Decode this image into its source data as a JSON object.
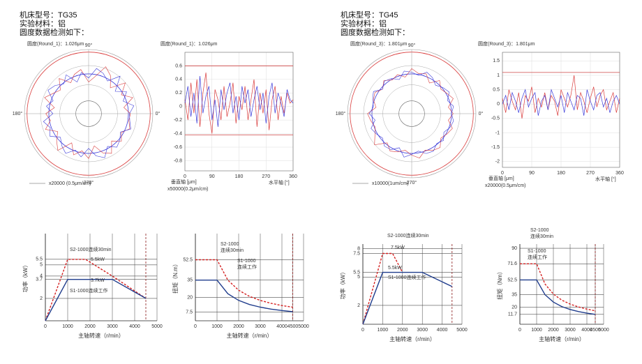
{
  "headers": [
    [
      "机床型号：TG35",
      "实验材料：铝",
      "圆度数据检测如下："
    ],
    [
      "机床型号：TG45",
      "实验材料：铝",
      "圆度数据检测如下："
    ]
  ],
  "chart_data": [
    {
      "type": "polar",
      "title": "圆度(Round_1)：1.026μm",
      "angle_labels": [
        "90°",
        "0°",
        "180°",
        "270°"
      ],
      "scale_label": "x20000 (0.5μm/cm)"
    },
    {
      "type": "line",
      "frame": "box",
      "title": "圆度(Round_1)：1.026μm",
      "ylabel": "垂直轴 [μm]",
      "scale_label": "x50000(0.2μm/cm)",
      "xlabel": "水平轴 [°]",
      "xlim": [
        0,
        360
      ],
      "xticks": [
        0,
        90,
        180,
        270,
        360
      ],
      "ylim": [
        -0.95,
        0.8
      ],
      "yticks": [
        0.6,
        0.4,
        0.2,
        0,
        -0.2,
        -0.4,
        -0.6,
        -0.8
      ],
      "limits": [
        0.6,
        -0.42
      ],
      "x": [
        0,
        10,
        20,
        30,
        40,
        50,
        60,
        70,
        80,
        90,
        100,
        110,
        120,
        130,
        140,
        150,
        160,
        170,
        180,
        190,
        200,
        210,
        220,
        230,
        240,
        250,
        260,
        270,
        280,
        290,
        300,
        310,
        320,
        330,
        340,
        350,
        360
      ],
      "series": [
        {
          "color": "#d93a3a",
          "values": [
            0.1,
            -0.2,
            0.35,
            -0.1,
            0.4,
            -0.3,
            0.2,
            0.5,
            -0.1,
            -0.4,
            0.25,
            0.1,
            -0.2,
            0.3,
            -0.15,
            0.05,
            0.35,
            -0.25,
            0.15,
            -0.05,
            0.3,
            -0.2,
            0.1,
            0.4,
            -0.3,
            0.2,
            -0.1,
            0.25,
            -0.35,
            0.1,
            0.3,
            -0.2,
            0.15,
            -0.1,
            0.2,
            0.05,
            0.1
          ]
        },
        {
          "color": "#3a3ad9",
          "values": [
            0.05,
            0.3,
            -0.15,
            0.2,
            -0.25,
            0.45,
            -0.1,
            0.15,
            0.3,
            -0.2,
            0.1,
            -0.3,
            0.25,
            -0.05,
            0.2,
            0.35,
            -0.1,
            0.15,
            -0.2,
            0.3,
            0.05,
            0.25,
            -0.15,
            0.1,
            0.3,
            -0.05,
            0.2,
            -0.25,
            0.15,
            0.35,
            -0.1,
            0.2,
            0.05,
            -0.15,
            0.25,
            0.1,
            0.05
          ]
        }
      ]
    },
    {
      "type": "line",
      "frame": "axes",
      "ylabel": "功率（kW）",
      "xlabel": "主轴转速（r/min）",
      "xlim": [
        0,
        5000
      ],
      "xticks": [
        0,
        1000,
        2000,
        3000,
        4000,
        5000
      ],
      "ylim": [
        0,
        7.8
      ],
      "yticks": [
        2,
        3.7,
        4,
        5,
        5.5
      ],
      "vline": 4500,
      "annotations": [
        "S2-1000连续30min",
        "5.5kW",
        "3.7kW",
        "S1-1000连续工作"
      ],
      "series": [
        {
          "color": "#d42020",
          "dashed": true,
          "x": [
            0,
            1000,
            1800,
            3000,
            4500
          ],
          "values": [
            0,
            5.5,
            5.5,
            4,
            2
          ]
        },
        {
          "color": "#1f3c8c",
          "x": [
            0,
            1000,
            3000,
            4500
          ],
          "values": [
            0,
            3.7,
            3.7,
            2
          ]
        }
      ]
    },
    {
      "type": "line",
      "frame": "axes",
      "ylabel": "扭矩（N.m）",
      "xlabel": "主轴转速（r/min）",
      "xlim": [
        0,
        5000
      ],
      "xticks": [
        0,
        1000,
        2000,
        3000,
        4000,
        4500,
        5000
      ],
      "ylim": [
        0,
        75
      ],
      "yticks": [
        7.5,
        20,
        35,
        52.5
      ],
      "vline": 4500,
      "annotations": [
        "S2-1000",
        "连续30min",
        "S1-1000",
        "连续工作"
      ],
      "series": [
        {
          "color": "#d42020",
          "dashed": true,
          "x": [
            0,
            1000,
            1500,
            2000,
            2500,
            3000,
            3500,
            4000,
            4500
          ],
          "values": [
            52.5,
            52.5,
            35,
            26.3,
            21,
            17.5,
            15,
            13.1,
            11.7
          ]
        },
        {
          "color": "#1f3c8c",
          "x": [
            0,
            1000,
            1500,
            2000,
            2500,
            3000,
            3500,
            4000,
            4500
          ],
          "values": [
            35,
            35,
            23.3,
            17.5,
            14,
            11.7,
            10,
            8.8,
            7.8
          ]
        }
      ]
    },
    {
      "type": "polar",
      "title": "圆度(Round_3)：1.801μm",
      "angle_labels": [
        "90°",
        "0°",
        "180°",
        "270°"
      ],
      "scale_label": "x10000(1um/cm)"
    },
    {
      "type": "line",
      "frame": "box",
      "title": "圆度(Round_3)：1.801μm",
      "ylabel": "垂直轴 [μm]",
      "scale_label": "x20000(0.5μm/cm)",
      "xlabel": "水平轴 [°]",
      "xlim": [
        0,
        360
      ],
      "xticks": [
        0,
        90,
        180,
        270,
        360
      ],
      "ylim": [
        -2.2,
        1.8
      ],
      "yticks": [
        1.5,
        1,
        0.5,
        0,
        -0.5,
        -1,
        -1.5,
        -2
      ],
      "limits": [
        1.1
      ],
      "x": [
        0,
        10,
        20,
        30,
        40,
        50,
        60,
        70,
        80,
        90,
        100,
        110,
        120,
        130,
        140,
        150,
        160,
        170,
        180,
        190,
        200,
        210,
        220,
        230,
        240,
        250,
        260,
        270,
        280,
        290,
        300,
        310,
        320,
        330,
        340,
        350,
        360
      ],
      "series": [
        {
          "color": "#d93a3a",
          "values": [
            0.2,
            -0.3,
            0.5,
            0.1,
            -0.2,
            0.4,
            -0.5,
            0.3,
            0.1,
            0.6,
            -0.3,
            0.2,
            -0.1,
            0.4,
            -0.2,
            0.3,
            0.1,
            -0.4,
            0.5,
            0.2,
            -0.1,
            0.3,
            1.0,
            -0.2,
            0.4,
            0.1,
            -0.3,
            0.2,
            0.6,
            -0.1,
            0.3,
            0.5,
            -0.2,
            0.1,
            0.4,
            -0.3,
            0.2
          ]
        },
        {
          "color": "#3a3ad9",
          "values": [
            0,
            0.3,
            -0.2,
            0.4,
            0.1,
            -0.3,
            0.2,
            0.5,
            -0.1,
            0.2,
            0.4,
            -0.4,
            0.1,
            0.3,
            -0.2,
            0.5,
            0.2,
            -0.1,
            0.3,
            -0.3,
            0.4,
            0.1,
            -0.2,
            0.3,
            0.2,
            -0.4,
            0.5,
            0.1,
            -0.2,
            0.3,
            0.4,
            -0.1,
            0.2,
            -0.3,
            0.1,
            0.3,
            0
          ]
        }
      ]
    },
    {
      "type": "line",
      "frame": "axes",
      "ylabel": "功率（kW）",
      "xlabel": "主轴转速（r/min）",
      "xlim": [
        0,
        5000
      ],
      "xticks": [
        0,
        1000,
        2000,
        3000,
        4000,
        5000
      ],
      "ylim": [
        0,
        8.5
      ],
      "yticks": [
        2,
        5,
        5.5,
        7.5,
        8
      ],
      "vline": 4500,
      "annotations": [
        "S2-1000连续30min",
        "7.5kW",
        "5.5kW",
        "S1-1000连续工作"
      ],
      "series": [
        {
          "color": "#d42020",
          "dashed": true,
          "x": [
            0,
            1000,
            1500,
            2000
          ],
          "values": [
            0,
            7.5,
            7.5,
            5.5
          ]
        },
        {
          "color": "#1f3c8c",
          "x": [
            0,
            1000,
            3000,
            4500
          ],
          "values": [
            0,
            5.5,
            5.5,
            4
          ]
        }
      ]
    },
    {
      "type": "line",
      "frame": "axes",
      "ylabel": "扭矩（Nm）",
      "xlabel": "主轴转速（r/min）",
      "xlim": [
        0,
        5000
      ],
      "xticks": [
        0,
        1000,
        2000,
        3000,
        4000,
        4500,
        5000
      ],
      "ylim": [
        0,
        95
      ],
      "yticks": [
        11.7,
        20,
        35,
        52.5,
        71.6,
        90
      ],
      "vline": 4500,
      "annotations": [
        "S2-1000",
        "连续30min",
        "S1-1000",
        "连续工作"
      ],
      "series": [
        {
          "color": "#d42020",
          "dashed": true,
          "x": [
            0,
            1000,
            1500,
            2000,
            2500,
            3000,
            3500,
            4000,
            4500
          ],
          "values": [
            71.6,
            71.6,
            47.7,
            35.8,
            28.6,
            23.9,
            20.5,
            17.9,
            15.9
          ]
        },
        {
          "color": "#1f3c8c",
          "x": [
            0,
            1000,
            1500,
            2000,
            2500,
            3000,
            3500,
            4000,
            4500
          ],
          "values": [
            52.5,
            52.5,
            35,
            26.3,
            21,
            17.5,
            15,
            13.1,
            11.7
          ]
        }
      ]
    }
  ]
}
